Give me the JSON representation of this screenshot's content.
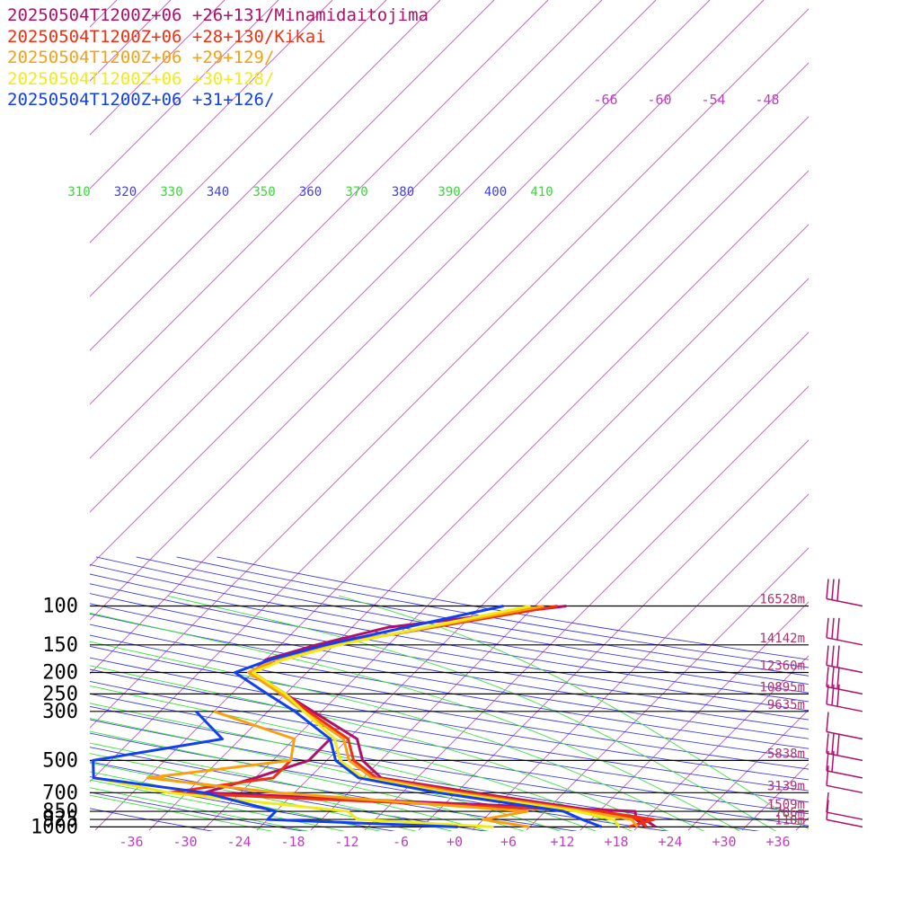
{
  "chart_data": {
    "type": "skew-t",
    "pressure_ticks": [
      "100",
      "150",
      "200",
      "250",
      "300",
      "500",
      "700",
      "850",
      "925",
      "1000"
    ],
    "temperature_ticks": [
      "-36",
      "-30",
      "-24",
      "-18",
      "-12",
      "-6",
      "+0",
      "+6",
      "+12",
      "+18",
      "+24",
      "+30",
      "+36"
    ],
    "height_labels": [
      {
        "p": 100,
        "label": "16528m"
      },
      {
        "p": 150,
        "label": "14142m"
      },
      {
        "p": 200,
        "label": "12360m"
      },
      {
        "p": 250,
        "label": "10895m"
      },
      {
        "p": 300,
        "label": "9635m"
      },
      {
        "p": 500,
        "label": "5838m"
      },
      {
        "p": 700,
        "label": "3139m"
      },
      {
        "p": 850,
        "label": "1509m"
      },
      {
        "p": 925,
        "label": "786m"
      },
      {
        "p": 1000,
        "label": "110m"
      }
    ],
    "isotherm_top_labels": [
      "-66",
      "-60",
      "-54",
      "-48"
    ],
    "theta_labels": [
      "310",
      "320",
      "330",
      "340",
      "350",
      "360",
      "370",
      "380",
      "390",
      "400",
      "410"
    ],
    "colors": {
      "isotherm": "#e040e0",
      "dry_adiabat": "#4040e0",
      "moist_adiabat": "#40e040",
      "label_magenta": "#c040c0",
      "height_label": "#b03070"
    },
    "series": [
      {
        "name": "20250504T1200Z+06 +26+131/Minamidaitojima",
        "color": "#b0106a",
        "temp": [
          [
            100,
            -12.5
          ],
          [
            125,
            -30
          ],
          [
            150,
            -36
          ],
          [
            175,
            -40
          ],
          [
            200,
            -40
          ],
          [
            250,
            -34
          ],
          [
            300,
            -29
          ],
          [
            400,
            -21
          ],
          [
            500,
            -18
          ],
          [
            600,
            -14
          ],
          [
            700,
            -2
          ],
          [
            850,
            14
          ],
          [
            925,
            20
          ],
          [
            1000,
            22
          ]
        ],
        "dewp": [
          [
            400,
            -24
          ],
          [
            500,
            -24
          ],
          [
            600,
            -28
          ],
          [
            700,
            -32
          ],
          [
            850,
            18
          ],
          [
            925,
            19
          ],
          [
            1000,
            21
          ]
        ]
      },
      {
        "name": "20250504T1200Z+06 +28+130/Kikai",
        "color": "#f03010",
        "temp": [
          [
            100,
            -13.5
          ],
          [
            150,
            -34.5
          ],
          [
            175,
            -39
          ],
          [
            200,
            -40
          ],
          [
            250,
            -34
          ],
          [
            300,
            -29.5
          ],
          [
            400,
            -22
          ],
          [
            500,
            -19
          ],
          [
            600,
            -14.5
          ],
          [
            700,
            -3
          ],
          [
            850,
            13
          ],
          [
            925,
            19.5
          ],
          [
            1000,
            21
          ]
        ],
        "dewp": [
          [
            500,
            -26
          ],
          [
            600,
            -26
          ],
          [
            700,
            -36
          ],
          [
            850,
            14
          ],
          [
            925,
            21
          ],
          [
            1000,
            19
          ]
        ]
      },
      {
        "name": "20250504T1200Z+06 +29+129/",
        "color": "#f8a010",
        "temp": [
          [
            100,
            -15
          ],
          [
            150,
            -34
          ],
          [
            175,
            -39
          ],
          [
            200,
            -40.5
          ],
          [
            250,
            -34.5
          ],
          [
            300,
            -30
          ],
          [
            400,
            -22.5
          ],
          [
            500,
            -19.5
          ],
          [
            600,
            -15
          ],
          [
            700,
            -4
          ],
          [
            850,
            12.5
          ],
          [
            925,
            18.5
          ],
          [
            1000,
            20
          ]
        ],
        "dewp": [
          [
            300,
            -40
          ],
          [
            400,
            -28
          ],
          [
            500,
            -26
          ],
          [
            600,
            -40
          ],
          [
            700,
            -24
          ],
          [
            850,
            6
          ],
          [
            925,
            2
          ],
          [
            1000,
            8
          ]
        ]
      },
      {
        "name": "20250504T1200Z+06 +30+128/",
        "color": "#f0ec18",
        "temp": [
          [
            100,
            -16.5
          ],
          [
            150,
            -33.5
          ],
          [
            175,
            -38
          ],
          [
            200,
            -40
          ],
          [
            250,
            -34
          ],
          [
            300,
            -30
          ],
          [
            400,
            -23.5
          ],
          [
            500,
            -20.5
          ],
          [
            600,
            -16
          ],
          [
            700,
            -5
          ],
          [
            850,
            11.5
          ],
          [
            925,
            16.5
          ],
          [
            1000,
            18
          ]
        ],
        "dewp": [
          [
            500,
            -48
          ],
          [
            600,
            -46
          ],
          [
            700,
            -36
          ],
          [
            850,
            -14
          ],
          [
            925,
            -12
          ],
          [
            1000,
            4
          ]
        ]
      },
      {
        "name": "20250504T1200Z+06 +31+126/",
        "color": "#1040f0",
        "temp": [
          [
            100,
            -19.5
          ],
          [
            150,
            -35
          ],
          [
            175,
            -39.5
          ],
          [
            200,
            -42
          ],
          [
            250,
            -36
          ],
          [
            300,
            -31
          ],
          [
            400,
            -24
          ],
          [
            500,
            -21
          ],
          [
            600,
            -16.5
          ],
          [
            700,
            -6
          ],
          [
            850,
            10
          ],
          [
            925,
            13
          ],
          [
            1000,
            16
          ]
        ],
        "dewp": [
          [
            300,
            -42
          ],
          [
            400,
            -36
          ],
          [
            500,
            -48
          ],
          [
            600,
            -46
          ],
          [
            700,
            -32
          ],
          [
            850,
            -22
          ],
          [
            925,
            -22
          ],
          [
            1000,
            0
          ]
        ]
      }
    ]
  }
}
